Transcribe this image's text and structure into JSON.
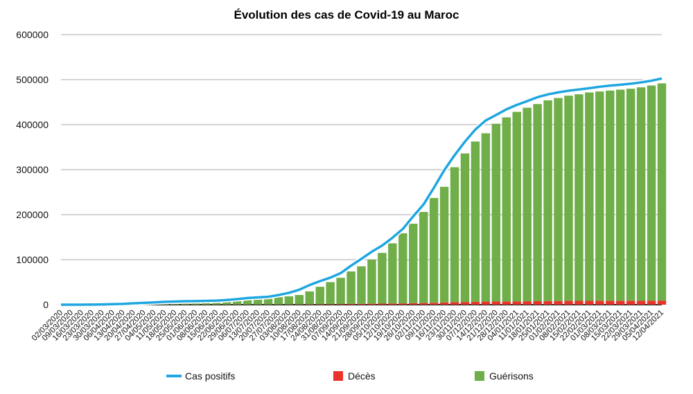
{
  "chart_data": {
    "type": "bar",
    "title": "Évolution des cas de Covid-19 au Maroc",
    "xlabel": "",
    "ylabel": "",
    "ylim": [
      0,
      600000
    ],
    "yticks": [
      "0",
      "100000",
      "200000",
      "300000",
      "400000",
      "500000",
      "600000"
    ],
    "grid": true,
    "legend_position": "bottom",
    "categories": [
      "02/03/2020",
      "09/03/2020",
      "16/03/2020",
      "23/03/2020",
      "30/03/2020",
      "06/04/2020",
      "13/04/2020",
      "20/04/2020",
      "27/04/2020",
      "04/05/2020",
      "11/05/2020",
      "18/05/2020",
      "25/05/2020",
      "01/06/2020",
      "08/06/2020",
      "15/06/2020",
      "22/06/2020",
      "29/06/2020",
      "06/07/2020",
      "13/07/2020",
      "20/07/2020",
      "27/07/2020",
      "03/08/2020",
      "10/08/2020",
      "17/08/2020",
      "24/08/2020",
      "31/08/2020",
      "07/09/2020",
      "14/09/2020",
      "21/09/2020",
      "28/09/2020",
      "05/10/2020",
      "12/10/2020",
      "19/10/2020",
      "26/10/2020",
      "02/11/2020",
      "09/11/2020",
      "16/11/2020",
      "23/11/2020",
      "30/11/2020",
      "07/12/2020",
      "14/12/2020",
      "21/12/2020",
      "28/12/2020",
      "04/01/2021",
      "11/01/2021",
      "18/01/2021",
      "25/01/2021",
      "01/02/2021",
      "08/02/2021",
      "15/02/2021",
      "22/02/2021",
      "01/03/2021",
      "08/03/2021",
      "15/03/2021",
      "22/03/2021",
      "29/03/2021",
      "05/04/2021",
      "12/04/2021"
    ],
    "series": [
      {
        "name": "Cas positifs",
        "kind": "line",
        "color": "#1ea6e0",
        "values": [
          1,
          2,
          28,
          143,
          556,
          1184,
          1763,
          3046,
          4065,
          5053,
          6281,
          6952,
          7601,
          7807,
          8508,
          9074,
          10344,
          12290,
          14771,
          16097,
          17562,
          21387,
          26196,
          33237,
          43558,
          52349,
          60056,
          70160,
          86686,
          101743,
          117685,
          131288,
          148710,
          168330,
          196251,
          222654,
          259825,
          298859,
          332238,
          362339,
          389216,
          409244,
          421439,
          434072,
          443881,
          452211,
          461007,
          467163,
          471742,
          475395,
          478161,
          480948,
          484128,
          486651,
          488632,
          490887,
          493877,
          497616,
          502607
        ]
      },
      {
        "name": "Décès",
        "kind": "bar",
        "color": "#e8352c",
        "values": [
          0,
          0,
          1,
          4,
          33,
          90,
          126,
          145,
          162,
          181,
          188,
          192,
          200,
          205,
          210,
          212,
          214,
          225,
          240,
          255,
          280,
          327,
          401,
          498,
          743,
          944,
          1107,
          1291,
          1578,
          1830,
          2085,
          2309,
          2540,
          2860,
          3268,
          3695,
          4222,
          4909,
          5533,
          6013,
          6466,
          6805,
          7003,
          7191,
          7388,
          7555,
          7776,
          8006,
          8203,
          8358,
          8459,
          8512,
          8635,
          8695,
          8731,
          8789,
          8843,
          8913,
          8958
        ]
      },
      {
        "name": "Guérisons",
        "kind": "bar",
        "color": "#6fae48",
        "values": [
          0,
          0,
          1,
          5,
          30,
          90,
          160,
          400,
          850,
          1600,
          2900,
          3900,
          4900,
          5800,
          7100,
          7900,
          8900,
          9200,
          10600,
          12600,
          14900,
          16400,
          18100,
          21000,
          28700,
          38800,
          49000,
          58400,
          72200,
          83400,
          98100,
          112700,
          133800,
          155800,
          176600,
          202300,
          232900,
          257000,
          299800,
          330000,
          356000,
          374000,
          395000,
          409000,
          421000,
          430000,
          438000,
          446000,
          451000,
          456000,
          459000,
          463000,
          465000,
          467000,
          469000,
          471000,
          474000,
          478000,
          482800
        ]
      }
    ]
  }
}
